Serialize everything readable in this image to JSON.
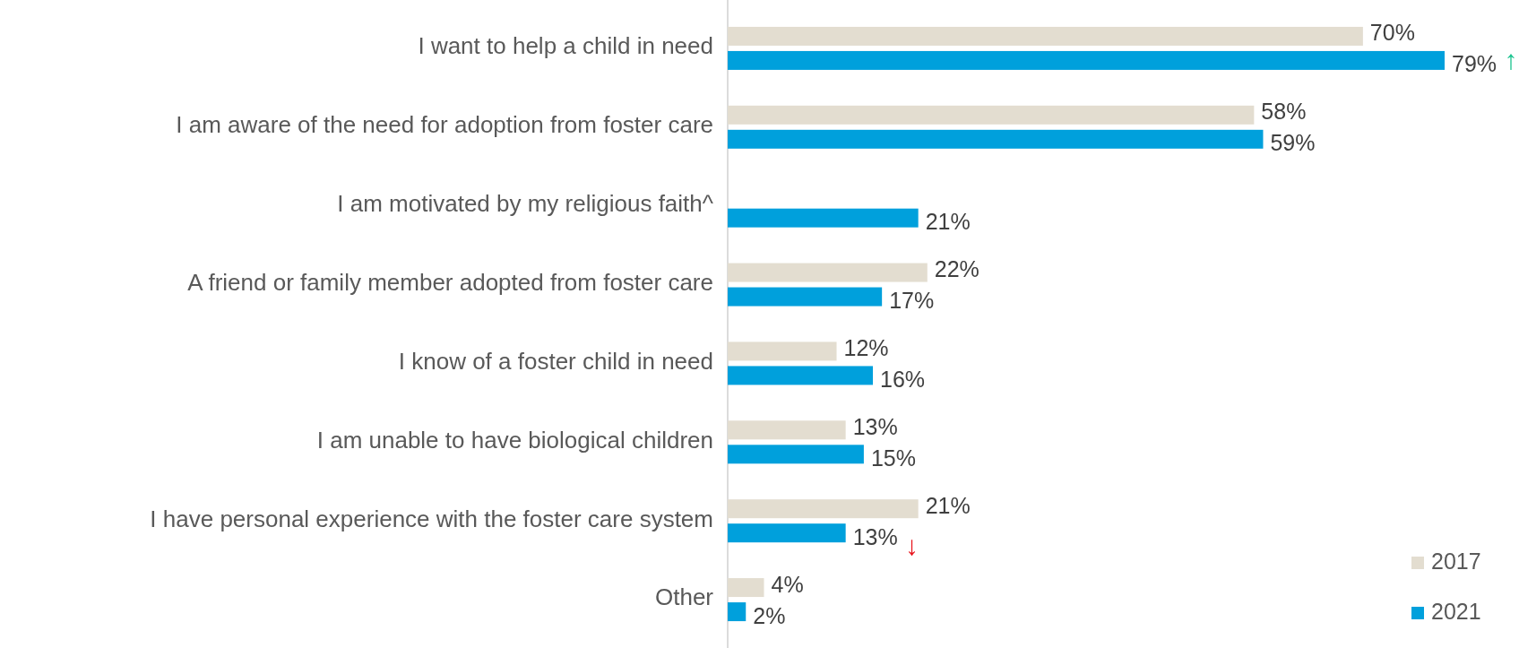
{
  "chart_data": {
    "type": "bar",
    "orientation": "horizontal",
    "categories": [
      "I want to help a child in need",
      "I am aware of the need for adoption from foster care",
      "I am motivated by my religious faith^",
      "A friend or family member adopted from foster care",
      "I know of a foster child in need",
      "I am unable to have biological children",
      "I have personal experience with the foster care system",
      "Other"
    ],
    "series": [
      {
        "name": "2017",
        "color": "#e3ddd0",
        "values": [
          70,
          58,
          null,
          22,
          12,
          13,
          21,
          4
        ],
        "value_labels": [
          "70%",
          "58%",
          null,
          "22%",
          "12%",
          "13%",
          "21%",
          "4%"
        ]
      },
      {
        "name": "2021",
        "color": "#00a0dc",
        "values": [
          79,
          59,
          21,
          17,
          16,
          15,
          13,
          2
        ],
        "value_labels": [
          "79% ↑",
          "59%",
          "21%",
          "17%",
          "16%",
          "15%",
          "13% ↓",
          "2%"
        ]
      }
    ],
    "legend": "bottom right"
  }
}
